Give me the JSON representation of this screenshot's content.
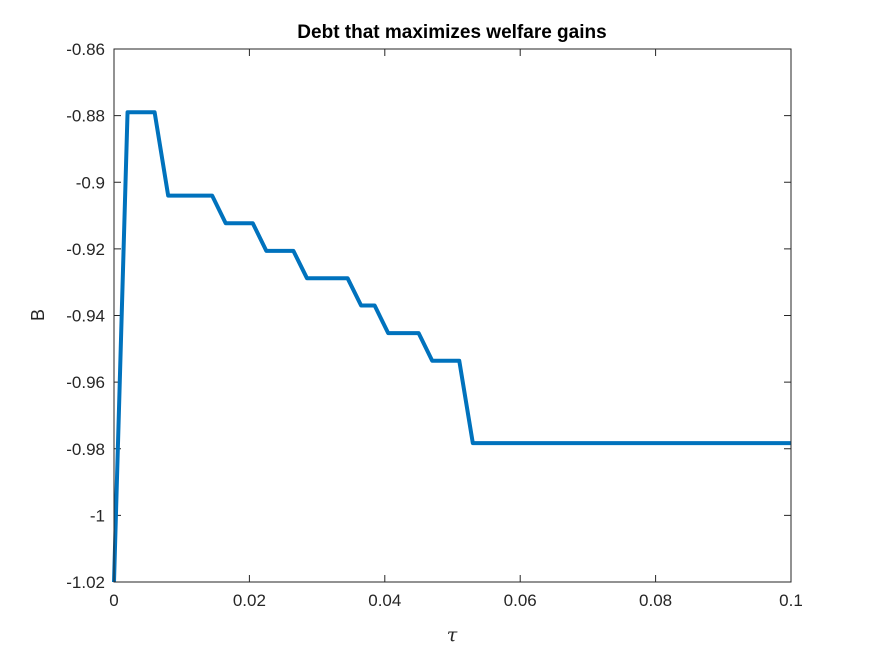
{
  "chart_data": {
    "type": "line",
    "title": "Debt that maximizes welfare gains",
    "xlabel": "τ",
    "ylabel": "B",
    "xlim": [
      0,
      0.1
    ],
    "ylim": [
      -1.02,
      -0.86
    ],
    "xticks": [
      0,
      0.02,
      0.04,
      0.06,
      0.08,
      0.1
    ],
    "xtick_labels": [
      "0",
      "0.02",
      "0.04",
      "0.06",
      "0.08",
      "0.1"
    ],
    "yticks": [
      -1.02,
      -1,
      -0.98,
      -0.96,
      -0.94,
      -0.92,
      -0.9,
      -0.88,
      -0.86
    ],
    "ytick_labels": [
      "-1.02",
      "-1",
      "-0.98",
      "-0.96",
      "-0.94",
      "-0.92",
      "-0.9",
      "-0.88",
      "-0.86"
    ],
    "grid": false,
    "box": true,
    "series": [
      {
        "color": "#0072BD",
        "x": [
          0,
          0.002,
          0.006,
          0.008,
          0.0145,
          0.0165,
          0.0205,
          0.0225,
          0.0265,
          0.0285,
          0.0345,
          0.0365,
          0.0385,
          0.0405,
          0.045,
          0.047,
          0.051,
          0.053,
          0.1
        ],
        "y": [
          -1.02,
          -0.879,
          -0.879,
          -0.904,
          -0.904,
          -0.9123,
          -0.9123,
          -0.9206,
          -0.9206,
          -0.9288,
          -0.9288,
          -0.937,
          -0.937,
          -0.9453,
          -0.9453,
          -0.9536,
          -0.9536,
          -0.9783,
          -0.9783
        ]
      }
    ]
  }
}
